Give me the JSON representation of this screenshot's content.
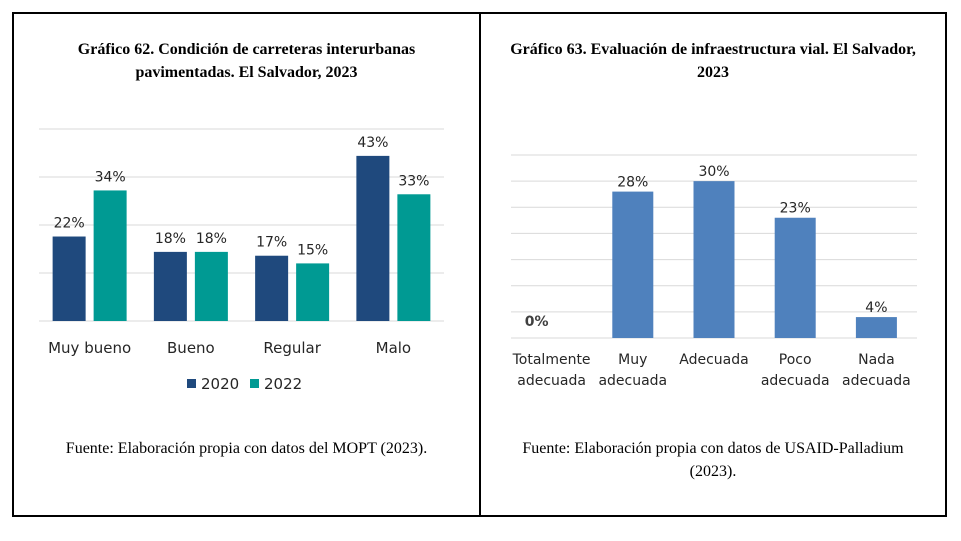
{
  "chart_data": [
    {
      "type": "bar",
      "title": "Gráfico 62. Condición de carreteras interurbanas\npavimentadas. El Salvador, 2023",
      "categories": [
        "Muy bueno",
        "Bueno",
        "Regular",
        "Malo"
      ],
      "series": [
        {
          "name": "2020",
          "values": [
            22,
            18,
            17,
            43
          ],
          "labels": [
            "22%",
            "18%",
            "17%",
            "43%"
          ],
          "color": "#1f497d"
        },
        {
          "name": "2022",
          "values": [
            34,
            18,
            15,
            33
          ],
          "labels": [
            "34%",
            "18%",
            "15%",
            "33%"
          ],
          "color": "#009a93"
        }
      ],
      "ylim": [
        0,
        50
      ],
      "grid": true,
      "legend": "bottom",
      "source": "Fuente: Elaboración propia con datos del MOPT (2023)."
    },
    {
      "type": "bar",
      "title": "Gráfico 63. Evaluación de infraestructura vial. El Salvador,\n2023",
      "categories": [
        [
          "Totalmente",
          "adecuada"
        ],
        [
          "Muy",
          "adecuada"
        ],
        [
          "Adecuada"
        ],
        [
          "Poco",
          "adecuada"
        ],
        [
          "Nada",
          "adecuada"
        ]
      ],
      "series": [
        {
          "values": [
            0,
            28,
            30,
            23,
            4
          ],
          "labels": [
            "0%",
            "28%",
            "30%",
            "23%",
            "4%"
          ],
          "color": "#4f81bd"
        }
      ],
      "ylim": [
        0,
        35
      ],
      "grid": true,
      "source": "Fuente: Elaboración propia con datos de USAID-Palladium\n(2023)."
    }
  ]
}
